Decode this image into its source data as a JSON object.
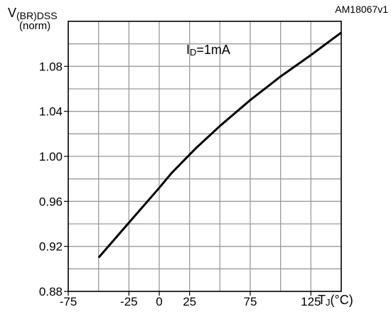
{
  "figure_code": "AM18067v1",
  "chart_data": {
    "type": "line",
    "ylabel": {
      "main": "V",
      "sub": "(BR)DSS",
      "line2": "(norm)"
    },
    "xlabel": {
      "main": "T",
      "sub": "J",
      "unit": "(°C)"
    },
    "annotation": {
      "main": "I",
      "sub": "D",
      "value": "=1mA"
    },
    "xlim": [
      -75,
      150
    ],
    "ylim": [
      0.88,
      1.12
    ],
    "x_ticks": [
      -75,
      -25,
      0,
      25,
      75,
      125
    ],
    "x_tick_labels": [
      "-75",
      "-25",
      "0",
      "25",
      "75",
      "125"
    ],
    "y_ticks": [
      0.88,
      0.92,
      0.96,
      1.0,
      1.04,
      1.08
    ],
    "y_tick_labels": [
      "0.88",
      "0.92",
      "0.96",
      "1.00",
      "1.04",
      "1.08"
    ],
    "grid": true,
    "series": [
      {
        "x": [
          -50,
          -25,
          0,
          10,
          20,
          30,
          50,
          75,
          100,
          125,
          150
        ],
        "values": [
          0.91,
          0.941,
          0.972,
          0.985,
          0.996,
          1.007,
          1.027,
          1.05,
          1.071,
          1.09,
          1.11
        ]
      }
    ]
  }
}
